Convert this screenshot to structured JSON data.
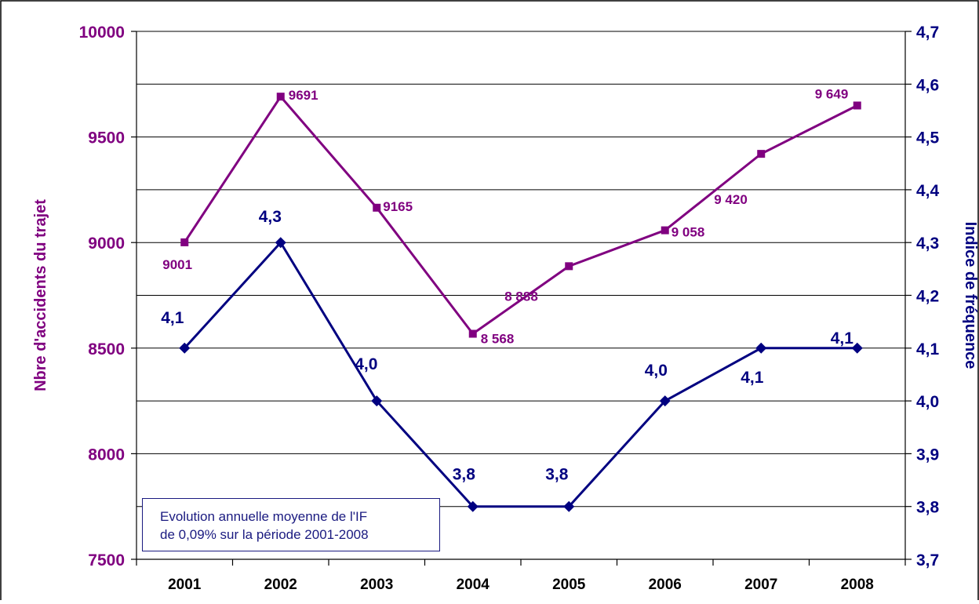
{
  "chart_data": {
    "type": "line",
    "categories": [
      "2001",
      "2002",
      "2003",
      "2004",
      "2005",
      "2006",
      "2007",
      "2008"
    ],
    "series": [
      {
        "axis": "left",
        "color": "#800080",
        "marker": "square",
        "values": [
          9001,
          9691,
          9165,
          8568,
          8888,
          9058,
          9420,
          9649
        ],
        "labels": [
          "9001",
          "9691",
          "9165",
          "8 568",
          "8 888",
          "9 058",
          "9 420",
          "9 649"
        ]
      },
      {
        "axis": "right",
        "color": "#000080",
        "marker": "diamond",
        "values": [
          4.1,
          4.3,
          4.0,
          3.8,
          3.8,
          4.0,
          4.1,
          4.1
        ],
        "labels": [
          "4,1",
          "4,3",
          "4,0",
          "3,8",
          "3,8",
          "4,0",
          "4,1",
          "4,1"
        ]
      }
    ],
    "y_left": {
      "label": "Nbre d'accidents du trajet",
      "range": [
        7500,
        10000
      ],
      "ticks": [
        "7500",
        "8000",
        "8500",
        "9000",
        "9500",
        "10000"
      ],
      "color": "#800080"
    },
    "y_right": {
      "label": "Indice de fréquence",
      "range": [
        3.7,
        4.7
      ],
      "ticks": [
        "3,7",
        "3,8",
        "3,9",
        "4,0",
        "4,1",
        "4,2",
        "4,3",
        "4,4",
        "4,5",
        "4,6",
        "4,7"
      ],
      "color": "#000080"
    },
    "grid": true,
    "annotation": [
      "Evolution annuelle moyenne de l'IF",
      "de 0,09% sur la période 2001-2008"
    ]
  }
}
